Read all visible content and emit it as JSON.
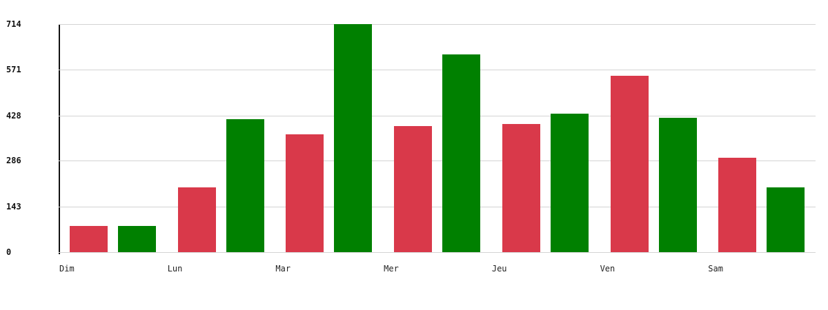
{
  "chart_data": {
    "type": "bar",
    "title": "",
    "xlabel": "",
    "ylabel": "",
    "categories": [
      "Dim",
      "Lun",
      "Mar",
      "Mer",
      "Jeu",
      "Ven",
      "Sam"
    ],
    "series": [
      {
        "name": "red-series",
        "color": "#d9394a",
        "values": [
          83,
          203,
          369,
          395,
          402,
          552,
          296
        ]
      },
      {
        "name": "green-series",
        "color": "#008000",
        "values": [
          81,
          416,
          714,
          620,
          433,
          420,
          203
        ]
      }
    ],
    "ylim": [
      0,
      714
    ],
    "yticks": [
      0,
      143,
      286,
      428,
      571,
      714
    ],
    "grid": true,
    "gridline_color": "#d3d3d3",
    "axis_color": "#111111",
    "background_color": "#ffffff",
    "legend_position": "none"
  }
}
